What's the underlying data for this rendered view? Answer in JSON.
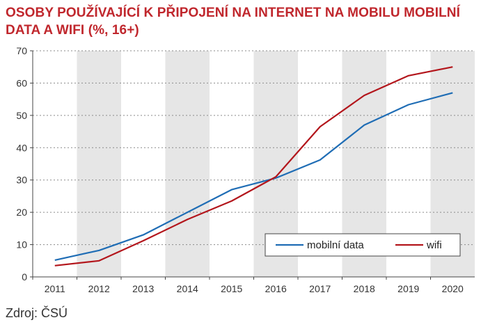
{
  "title": "OSOBY POUŽÍVAJÍCÍ K PŘIPOJENÍ NA INTERNET NA MOBILU MOBILNÍ DATA A WIFI (%, 16+)",
  "source": "Zdroj: ČSÚ",
  "colors": {
    "mobile": "#1f6db5",
    "wifi": "#b3161c",
    "band": "#e6e6e6",
    "title": "#c0272d"
  },
  "chart_data": {
    "type": "line",
    "title": "OSOBY POUŽÍVAJÍCÍ K PŘIPOJENÍ NA INTERNET NA MOBILU MOBILNÍ DATA A WIFI (%, 16+)",
    "x": [
      "2011",
      "2012",
      "2013",
      "2014",
      "2015",
      "2016",
      "2017",
      "2018",
      "2019",
      "2020"
    ],
    "ylim": [
      0,
      70
    ],
    "yticks": [
      0,
      10,
      20,
      30,
      40,
      50,
      60,
      70
    ],
    "grid": true,
    "legend_position": "bottom-right",
    "series": [
      {
        "name": "mobilní data",
        "values": [
          5.2,
          8.2,
          13.0,
          20.0,
          27.0,
          30.6,
          36.2,
          47.0,
          53.3,
          57.0
        ]
      },
      {
        "name": "wifi",
        "values": [
          3.5,
          5.0,
          11.2,
          17.8,
          23.5,
          31.0,
          46.5,
          56.2,
          62.3,
          65.0
        ]
      }
    ]
  }
}
